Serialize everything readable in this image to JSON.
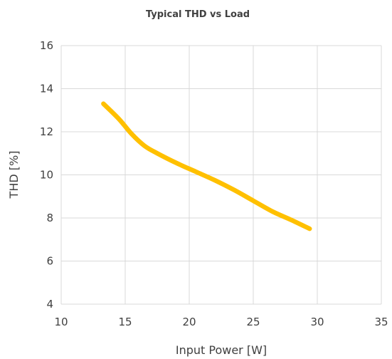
{
  "chart_data": {
    "type": "line",
    "title": "Typical THD vs Load",
    "xlabel": "Input Power [W]",
    "ylabel": "THD [%]",
    "xlim": [
      10,
      35
    ],
    "ylim": [
      4,
      16
    ],
    "xticks": [
      10,
      15,
      20,
      25,
      30,
      35
    ],
    "yticks": [
      4,
      6,
      8,
      10,
      12,
      14,
      16
    ],
    "grid": true,
    "legend": "none",
    "series": [
      {
        "color": "#FFC000",
        "x": [
          13.3,
          14.5,
          15.5,
          16.5,
          17.5,
          19.0,
          20.5,
          22.0,
          23.5,
          25.0,
          26.5,
          28.0,
          29.4
        ],
        "y": [
          13.3,
          12.6,
          11.9,
          11.35,
          11.0,
          10.55,
          10.15,
          9.75,
          9.3,
          8.8,
          8.3,
          7.9,
          7.5
        ]
      }
    ]
  }
}
